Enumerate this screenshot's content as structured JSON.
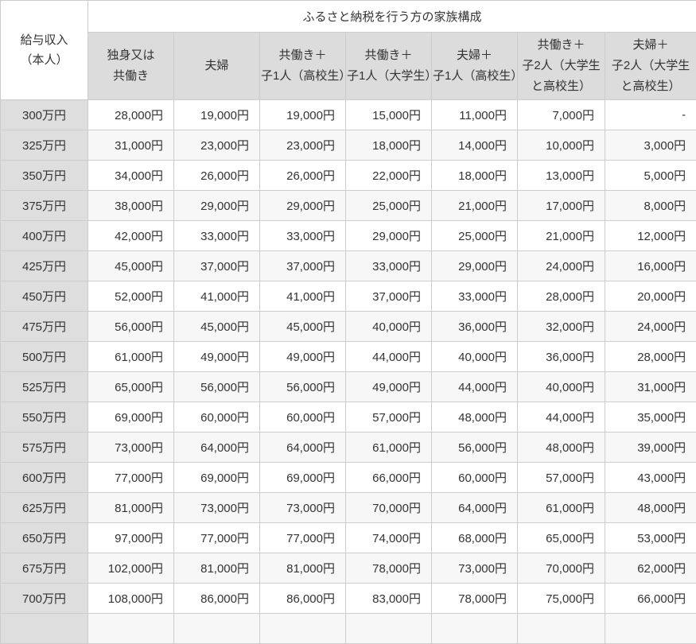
{
  "table": {
    "corner_header": {
      "line1": "給与収入",
      "line2": "（本人）"
    },
    "group_header": "ふるさと納税を行う方の家族構成",
    "column_headers": [
      [
        "独身又は",
        "共働き"
      ],
      [
        "夫婦"
      ],
      [
        "共働き＋",
        "子1人（高校生）"
      ],
      [
        "共働き＋",
        "子1人（大学生）"
      ],
      [
        "夫婦＋",
        "子1人（高校生）"
      ],
      [
        "共働き＋",
        "子2人（大学生",
        "と高校生）"
      ],
      [
        "夫婦＋",
        "子2人（大学生",
        "と高校生）"
      ]
    ],
    "rows": [
      {
        "income": "300万円",
        "values": [
          "28,000円",
          "19,000円",
          "19,000円",
          "15,000円",
          "11,000円",
          "7,000円",
          "-"
        ]
      },
      {
        "income": "325万円",
        "values": [
          "31,000円",
          "23,000円",
          "23,000円",
          "18,000円",
          "14,000円",
          "10,000円",
          "3,000円"
        ]
      },
      {
        "income": "350万円",
        "values": [
          "34,000円",
          "26,000円",
          "26,000円",
          "22,000円",
          "18,000円",
          "13,000円",
          "5,000円"
        ]
      },
      {
        "income": "375万円",
        "values": [
          "38,000円",
          "29,000円",
          "29,000円",
          "25,000円",
          "21,000円",
          "17,000円",
          "8,000円"
        ]
      },
      {
        "income": "400万円",
        "values": [
          "42,000円",
          "33,000円",
          "33,000円",
          "29,000円",
          "25,000円",
          "21,000円",
          "12,000円"
        ]
      },
      {
        "income": "425万円",
        "values": [
          "45,000円",
          "37,000円",
          "37,000円",
          "33,000円",
          "29,000円",
          "24,000円",
          "16,000円"
        ]
      },
      {
        "income": "450万円",
        "values": [
          "52,000円",
          "41,000円",
          "41,000円",
          "37,000円",
          "33,000円",
          "28,000円",
          "20,000円"
        ]
      },
      {
        "income": "475万円",
        "values": [
          "56,000円",
          "45,000円",
          "45,000円",
          "40,000円",
          "36,000円",
          "32,000円",
          "24,000円"
        ]
      },
      {
        "income": "500万円",
        "values": [
          "61,000円",
          "49,000円",
          "49,000円",
          "44,000円",
          "40,000円",
          "36,000円",
          "28,000円"
        ]
      },
      {
        "income": "525万円",
        "values": [
          "65,000円",
          "56,000円",
          "56,000円",
          "49,000円",
          "44,000円",
          "40,000円",
          "31,000円"
        ]
      },
      {
        "income": "550万円",
        "values": [
          "69,000円",
          "60,000円",
          "60,000円",
          "57,000円",
          "48,000円",
          "44,000円",
          "35,000円"
        ]
      },
      {
        "income": "575万円",
        "values": [
          "73,000円",
          "64,000円",
          "64,000円",
          "61,000円",
          "56,000円",
          "48,000円",
          "39,000円"
        ]
      },
      {
        "income": "600万円",
        "values": [
          "77,000円",
          "69,000円",
          "69,000円",
          "66,000円",
          "60,000円",
          "57,000円",
          "43,000円"
        ]
      },
      {
        "income": "625万円",
        "values": [
          "81,000円",
          "73,000円",
          "73,000円",
          "70,000円",
          "64,000円",
          "61,000円",
          "48,000円"
        ]
      },
      {
        "income": "650万円",
        "values": [
          "97,000円",
          "77,000円",
          "77,000円",
          "74,000円",
          "68,000円",
          "65,000円",
          "53,000円"
        ]
      },
      {
        "income": "675万円",
        "values": [
          "102,000円",
          "81,000円",
          "81,000円",
          "78,000円",
          "73,000円",
          "70,000円",
          "62,000円"
        ]
      },
      {
        "income": "700万円",
        "values": [
          "108,000円",
          "86,000円",
          "86,000円",
          "83,000円",
          "78,000円",
          "75,000円",
          "66,000円"
        ]
      }
    ],
    "partial_row": {
      "income": "",
      "values": [
        "",
        "",
        "",
        "",
        "",
        "",
        ""
      ]
    }
  },
  "colors": {
    "column_header_bg": "#dcdcdc",
    "row_header_bg": "#dedede",
    "zebra_row_bg": "#f7f7f7",
    "white_row_bg": "#ffffff",
    "border": "#cccccc",
    "text": "#333333"
  },
  "chart_data": {
    "type": "table",
    "title": "ふるさと納税を行う方の家族構成",
    "row_axis_label": "給与収入（本人）",
    "categories": [
      "300万円",
      "325万円",
      "350万円",
      "375万円",
      "400万円",
      "425万円",
      "450万円",
      "475万円",
      "500万円",
      "525万円",
      "550万円",
      "575万円",
      "600万円",
      "625万円",
      "650万円",
      "675万円",
      "700万円"
    ],
    "unit": "円",
    "series": [
      {
        "name": "独身又は共働き",
        "values": [
          28000,
          31000,
          34000,
          38000,
          42000,
          45000,
          52000,
          56000,
          61000,
          65000,
          69000,
          73000,
          77000,
          81000,
          97000,
          102000,
          108000
        ]
      },
      {
        "name": "夫婦",
        "values": [
          19000,
          23000,
          26000,
          29000,
          33000,
          37000,
          41000,
          45000,
          49000,
          56000,
          60000,
          64000,
          69000,
          73000,
          77000,
          81000,
          86000
        ]
      },
      {
        "name": "共働き＋子1人（高校生）",
        "values": [
          19000,
          23000,
          26000,
          29000,
          33000,
          37000,
          41000,
          45000,
          49000,
          56000,
          60000,
          64000,
          69000,
          73000,
          77000,
          81000,
          86000
        ]
      },
      {
        "name": "共働き＋子1人（大学生）",
        "values": [
          15000,
          18000,
          22000,
          25000,
          29000,
          33000,
          37000,
          40000,
          44000,
          49000,
          57000,
          61000,
          66000,
          70000,
          74000,
          78000,
          83000
        ]
      },
      {
        "name": "夫婦＋子1人（高校生）",
        "values": [
          11000,
          14000,
          18000,
          21000,
          25000,
          29000,
          33000,
          36000,
          40000,
          44000,
          48000,
          56000,
          60000,
          64000,
          68000,
          73000,
          78000
        ]
      },
      {
        "name": "共働き＋子2人（大学生と高校生）",
        "values": [
          7000,
          10000,
          13000,
          17000,
          21000,
          24000,
          28000,
          32000,
          36000,
          40000,
          44000,
          48000,
          57000,
          61000,
          65000,
          70000,
          75000
        ]
      },
      {
        "name": "夫婦＋子2人（大学生と高校生）",
        "values": [
          null,
          3000,
          5000,
          8000,
          12000,
          16000,
          20000,
          24000,
          28000,
          31000,
          35000,
          39000,
          43000,
          48000,
          53000,
          62000,
          66000
        ]
      }
    ]
  }
}
